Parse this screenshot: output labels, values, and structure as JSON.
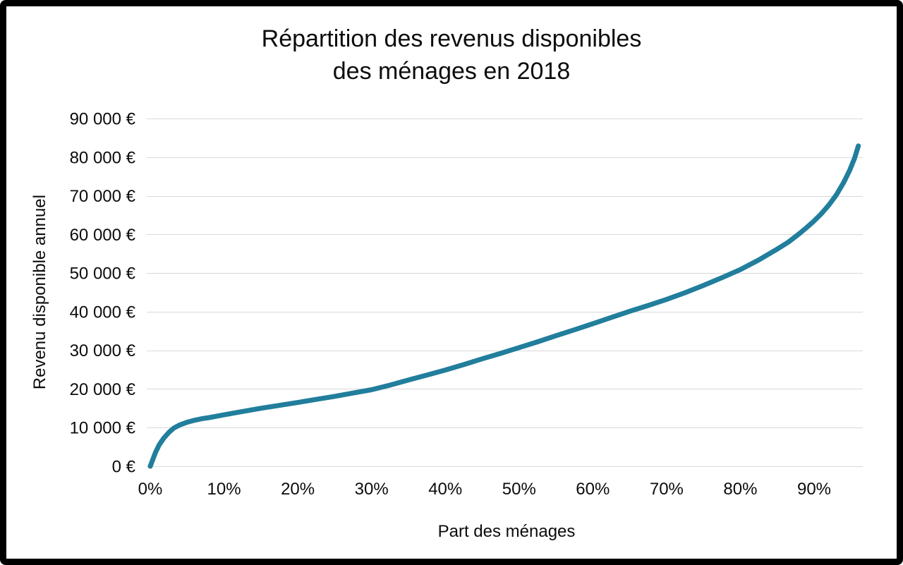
{
  "chart_data": {
    "type": "line",
    "title_lines": [
      "Répartition des revenus disponibles",
      "des ménages en 2018"
    ],
    "xlabel": "Part des ménages",
    "ylabel": "Revenu disponible annuel",
    "xlim": [
      0,
      96.6
    ],
    "ylim": [
      0,
      90000
    ],
    "grid": "horizontal",
    "legend": "none",
    "x_ticks": [
      {
        "value": 0,
        "label": "0%"
      },
      {
        "value": 10,
        "label": "10%"
      },
      {
        "value": 20,
        "label": "20%"
      },
      {
        "value": 30,
        "label": "30%"
      },
      {
        "value": 40,
        "label": "40%"
      },
      {
        "value": 50,
        "label": "50%"
      },
      {
        "value": 60,
        "label": "60%"
      },
      {
        "value": 70,
        "label": "70%"
      },
      {
        "value": 80,
        "label": "80%"
      },
      {
        "value": 90,
        "label": "90%"
      }
    ],
    "y_ticks": [
      {
        "value": 0,
        "label": "0 €"
      },
      {
        "value": 10000,
        "label": "10 000 €"
      },
      {
        "value": 20000,
        "label": "20 000 €"
      },
      {
        "value": 30000,
        "label": "30 000 €"
      },
      {
        "value": 40000,
        "label": "40 000 €"
      },
      {
        "value": 50000,
        "label": "50 000 €"
      },
      {
        "value": 60000,
        "label": "60 000 €"
      },
      {
        "value": 70000,
        "label": "70 000 €"
      },
      {
        "value": 80000,
        "label": "80 000 €"
      },
      {
        "value": 90000,
        "label": "90 000 €"
      }
    ],
    "series": [
      {
        "name": "Revenu disponible annuel",
        "points": [
          [
            0,
            0
          ],
          [
            0.3,
            1500
          ],
          [
            0.7,
            3500
          ],
          [
            1.2,
            5500
          ],
          [
            1.8,
            7200
          ],
          [
            2.5,
            8700
          ],
          [
            3.2,
            9900
          ],
          [
            4,
            10700
          ],
          [
            5,
            11400
          ],
          [
            6,
            11900
          ],
          [
            7,
            12300
          ],
          [
            8,
            12600
          ],
          [
            9,
            12950
          ],
          [
            10,
            13300
          ],
          [
            12,
            14000
          ],
          [
            15,
            15000
          ],
          [
            17.5,
            15750
          ],
          [
            20,
            16500
          ],
          [
            22.5,
            17300
          ],
          [
            25,
            18100
          ],
          [
            27.5,
            18950
          ],
          [
            30,
            19800
          ],
          [
            32.5,
            21000
          ],
          [
            35,
            22300
          ],
          [
            37.5,
            23600
          ],
          [
            40,
            24900
          ],
          [
            42.5,
            26300
          ],
          [
            45,
            27800
          ],
          [
            47.5,
            29200
          ],
          [
            50,
            30700
          ],
          [
            52.5,
            32200
          ],
          [
            55,
            33800
          ],
          [
            57.5,
            35300
          ],
          [
            60,
            36900
          ],
          [
            62.5,
            38500
          ],
          [
            65,
            40100
          ],
          [
            67.5,
            41600
          ],
          [
            70,
            43200
          ],
          [
            72.5,
            44900
          ],
          [
            75,
            46800
          ],
          [
            77.5,
            48800
          ],
          [
            80,
            50900
          ],
          [
            82.5,
            53400
          ],
          [
            85,
            56200
          ],
          [
            86.5,
            58000
          ],
          [
            88,
            60200
          ],
          [
            89,
            61800
          ],
          [
            90,
            63500
          ],
          [
            91,
            65400
          ],
          [
            92,
            67600
          ],
          [
            93,
            70200
          ],
          [
            94,
            73400
          ],
          [
            94.8,
            76500
          ],
          [
            95.5,
            79800
          ],
          [
            96,
            82900
          ]
        ]
      }
    ],
    "colors": {
      "line": "#217e9c",
      "grid": "#d9d9d9",
      "text": "#000000",
      "frame": "#000000",
      "background": "#ffffff"
    }
  }
}
